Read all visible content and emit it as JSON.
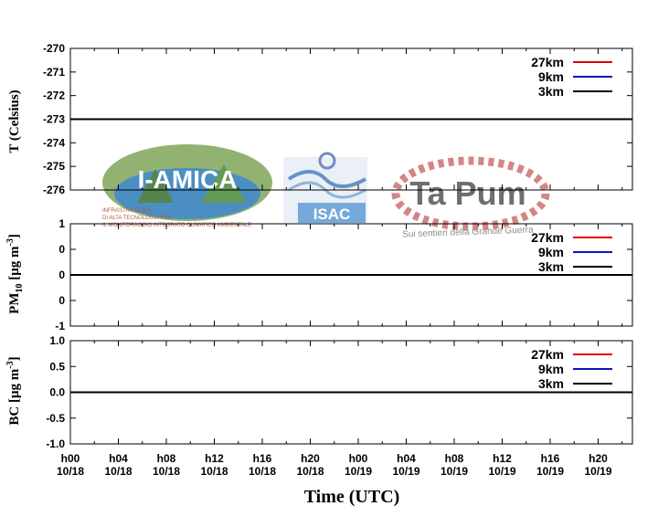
{
  "logos": {
    "iamica": {
      "name": "I-AMICA",
      "lines": [
        "INFRASTRUTTURA",
        "DI ALTA TECNOLOGIA PER",
        "IL MONITORAGGIO INTEGRATO CLIMATICO AMBIENTALE"
      ]
    },
    "isac": {
      "name": "ISAC"
    },
    "tapum": {
      "name": "Ta Pum",
      "tagline": "Sui sentieri della Grande Guerra"
    }
  },
  "colors": {
    "27km": "#e00000",
    "9km": "#1010c0",
    "3km": "#000000"
  },
  "chart_data": [
    {
      "type": "line",
      "ylabel": "T (Celsius)",
      "ylim": [
        -276,
        -270
      ],
      "yticks": [
        "-270",
        "-271",
        "-272",
        "-273",
        "-274",
        "-275",
        "-276"
      ],
      "grid": false,
      "legend_position": "top-right",
      "legend": [
        "27km",
        "9km",
        "3km"
      ],
      "series": [
        {
          "name": "27km",
          "color": "#e00000",
          "values": [
            -273,
            -273
          ]
        },
        {
          "name": "9km",
          "color": "#1010c0",
          "values": [
            -273,
            -273
          ]
        },
        {
          "name": "3km",
          "color": "#000000",
          "values": [
            -273,
            -273
          ]
        }
      ]
    },
    {
      "type": "line",
      "ylabel_main": "PM",
      "ylabel_sub": "10",
      "ylabel_unit": " [μg m",
      "ylabel_sup": "-3",
      "ylabel_end": "]",
      "ylim": [
        -1,
        1
      ],
      "yticks": [
        "1",
        "0",
        "0",
        "0",
        "-1"
      ],
      "grid": false,
      "legend_position": "top-right",
      "legend": [
        "27km",
        "9km",
        "3km"
      ],
      "series": [
        {
          "name": "27km",
          "color": "#e00000",
          "values": [
            0,
            0
          ]
        },
        {
          "name": "9km",
          "color": "#1010c0",
          "values": [
            0,
            0
          ]
        },
        {
          "name": "3km",
          "color": "#000000",
          "values": [
            0,
            0
          ]
        }
      ]
    },
    {
      "type": "line",
      "ylabel_main": "BC",
      "ylabel_unit": " [μg m",
      "ylabel_sup": "-3",
      "ylabel_end": "]",
      "ylim": [
        -1,
        1
      ],
      "yticks": [
        "1.0",
        "0.5",
        "0.0",
        "-0.5",
        "-1.0"
      ],
      "grid": false,
      "legend_position": "top-right",
      "legend": [
        "27km",
        "9km",
        "3km"
      ],
      "series": [
        {
          "name": "27km",
          "color": "#e00000",
          "values": [
            0,
            0
          ]
        },
        {
          "name": "9km",
          "color": "#1010c0",
          "values": [
            0,
            0
          ]
        },
        {
          "name": "3km",
          "color": "#000000",
          "values": [
            0,
            0
          ]
        }
      ]
    }
  ],
  "x_axis": {
    "xlabel": "Time (UTC)",
    "ticks": [
      [
        "h00",
        "10/18"
      ],
      [
        "h04",
        "10/18"
      ],
      [
        "h08",
        "10/18"
      ],
      [
        "h12",
        "10/18"
      ],
      [
        "h16",
        "10/18"
      ],
      [
        "h20",
        "10/18"
      ],
      [
        "h00",
        "10/19"
      ],
      [
        "h04",
        "10/19"
      ],
      [
        "h08",
        "10/19"
      ],
      [
        "h12",
        "10/19"
      ],
      [
        "h16",
        "10/19"
      ],
      [
        "h20",
        "10/19"
      ]
    ]
  }
}
